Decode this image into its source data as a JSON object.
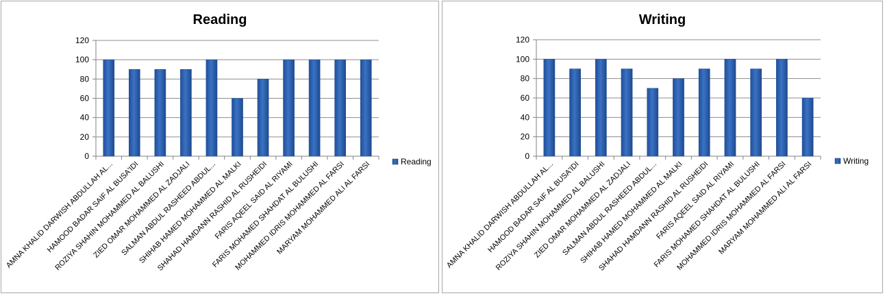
{
  "chart_data": [
    {
      "type": "bar",
      "title": "Reading",
      "xlabel": "",
      "ylabel": "",
      "ylim": [
        0,
        120
      ],
      "yticks": [
        0,
        20,
        40,
        60,
        80,
        100,
        120
      ],
      "grid": true,
      "legend_position": "right",
      "bar_color": "#3b72c4",
      "categories": [
        "AMNA KHALID DARWISH ABDULLAH AL...",
        "HAMOOD BADAR SAIF AL BUSA'IDI",
        "ROZIYA SHAHIN MOHAMMED AL BALUSHI",
        "ZIED OMAR MOHAMMED AL ZADJALI",
        "SALMAN ABDUL RASHEED ABDUL...",
        "SHIHAB HAMED MOHAMMED AL MALKI",
        "SHAHAD HAMDANN RASHID AL RUSHEIDI",
        "FARIS AQEEL SAID AL RIYAMI",
        "FARIS MOHAMED SHAHDAT AL BULUSHI",
        "MOHAMMED IDRIS MOHAMMED AL FARSI",
        "MARYAM MOHAMMED ALI AL FARSI"
      ],
      "series": [
        {
          "name": "Reading",
          "values": [
            100,
            90,
            90,
            90,
            100,
            60,
            80,
            100,
            100,
            100,
            100
          ]
        }
      ]
    },
    {
      "type": "bar",
      "title": "Writing",
      "xlabel": "",
      "ylabel": "",
      "ylim": [
        0,
        120
      ],
      "yticks": [
        0,
        20,
        40,
        60,
        80,
        100,
        120
      ],
      "grid": true,
      "legend_position": "right",
      "bar_color": "#3b72c4",
      "categories": [
        "AMNA KHALID DARWISH ABDULLAH AL...",
        "HAMOOD BADAR SAIF AL BUSA'IDI",
        "ROZIYA SHAHIN MOHAMMED AL BALUSHI",
        "ZIED OMAR MOHAMMED AL ZADJALI",
        "SALMAN ABDUL RASHEED ABDUL...",
        "SHIHAB HAMED MOHAMMED AL MALKI",
        "SHAHAD HAMDANN RASHID AL RUSHEIDI",
        "FARIS AQEEL SAID AL RIYAMI",
        "FARIS MOHAMED SHAHDAT AL BULUSHI",
        "MOHAMMED IDRIS MOHAMMED AL FARSI",
        "MARYAM MOHAMMED ALI AL FARSI"
      ],
      "series": [
        {
          "name": "Writing",
          "values": [
            100,
            90,
            100,
            90,
            70,
            80,
            90,
            100,
            90,
            100,
            60
          ]
        }
      ]
    }
  ]
}
